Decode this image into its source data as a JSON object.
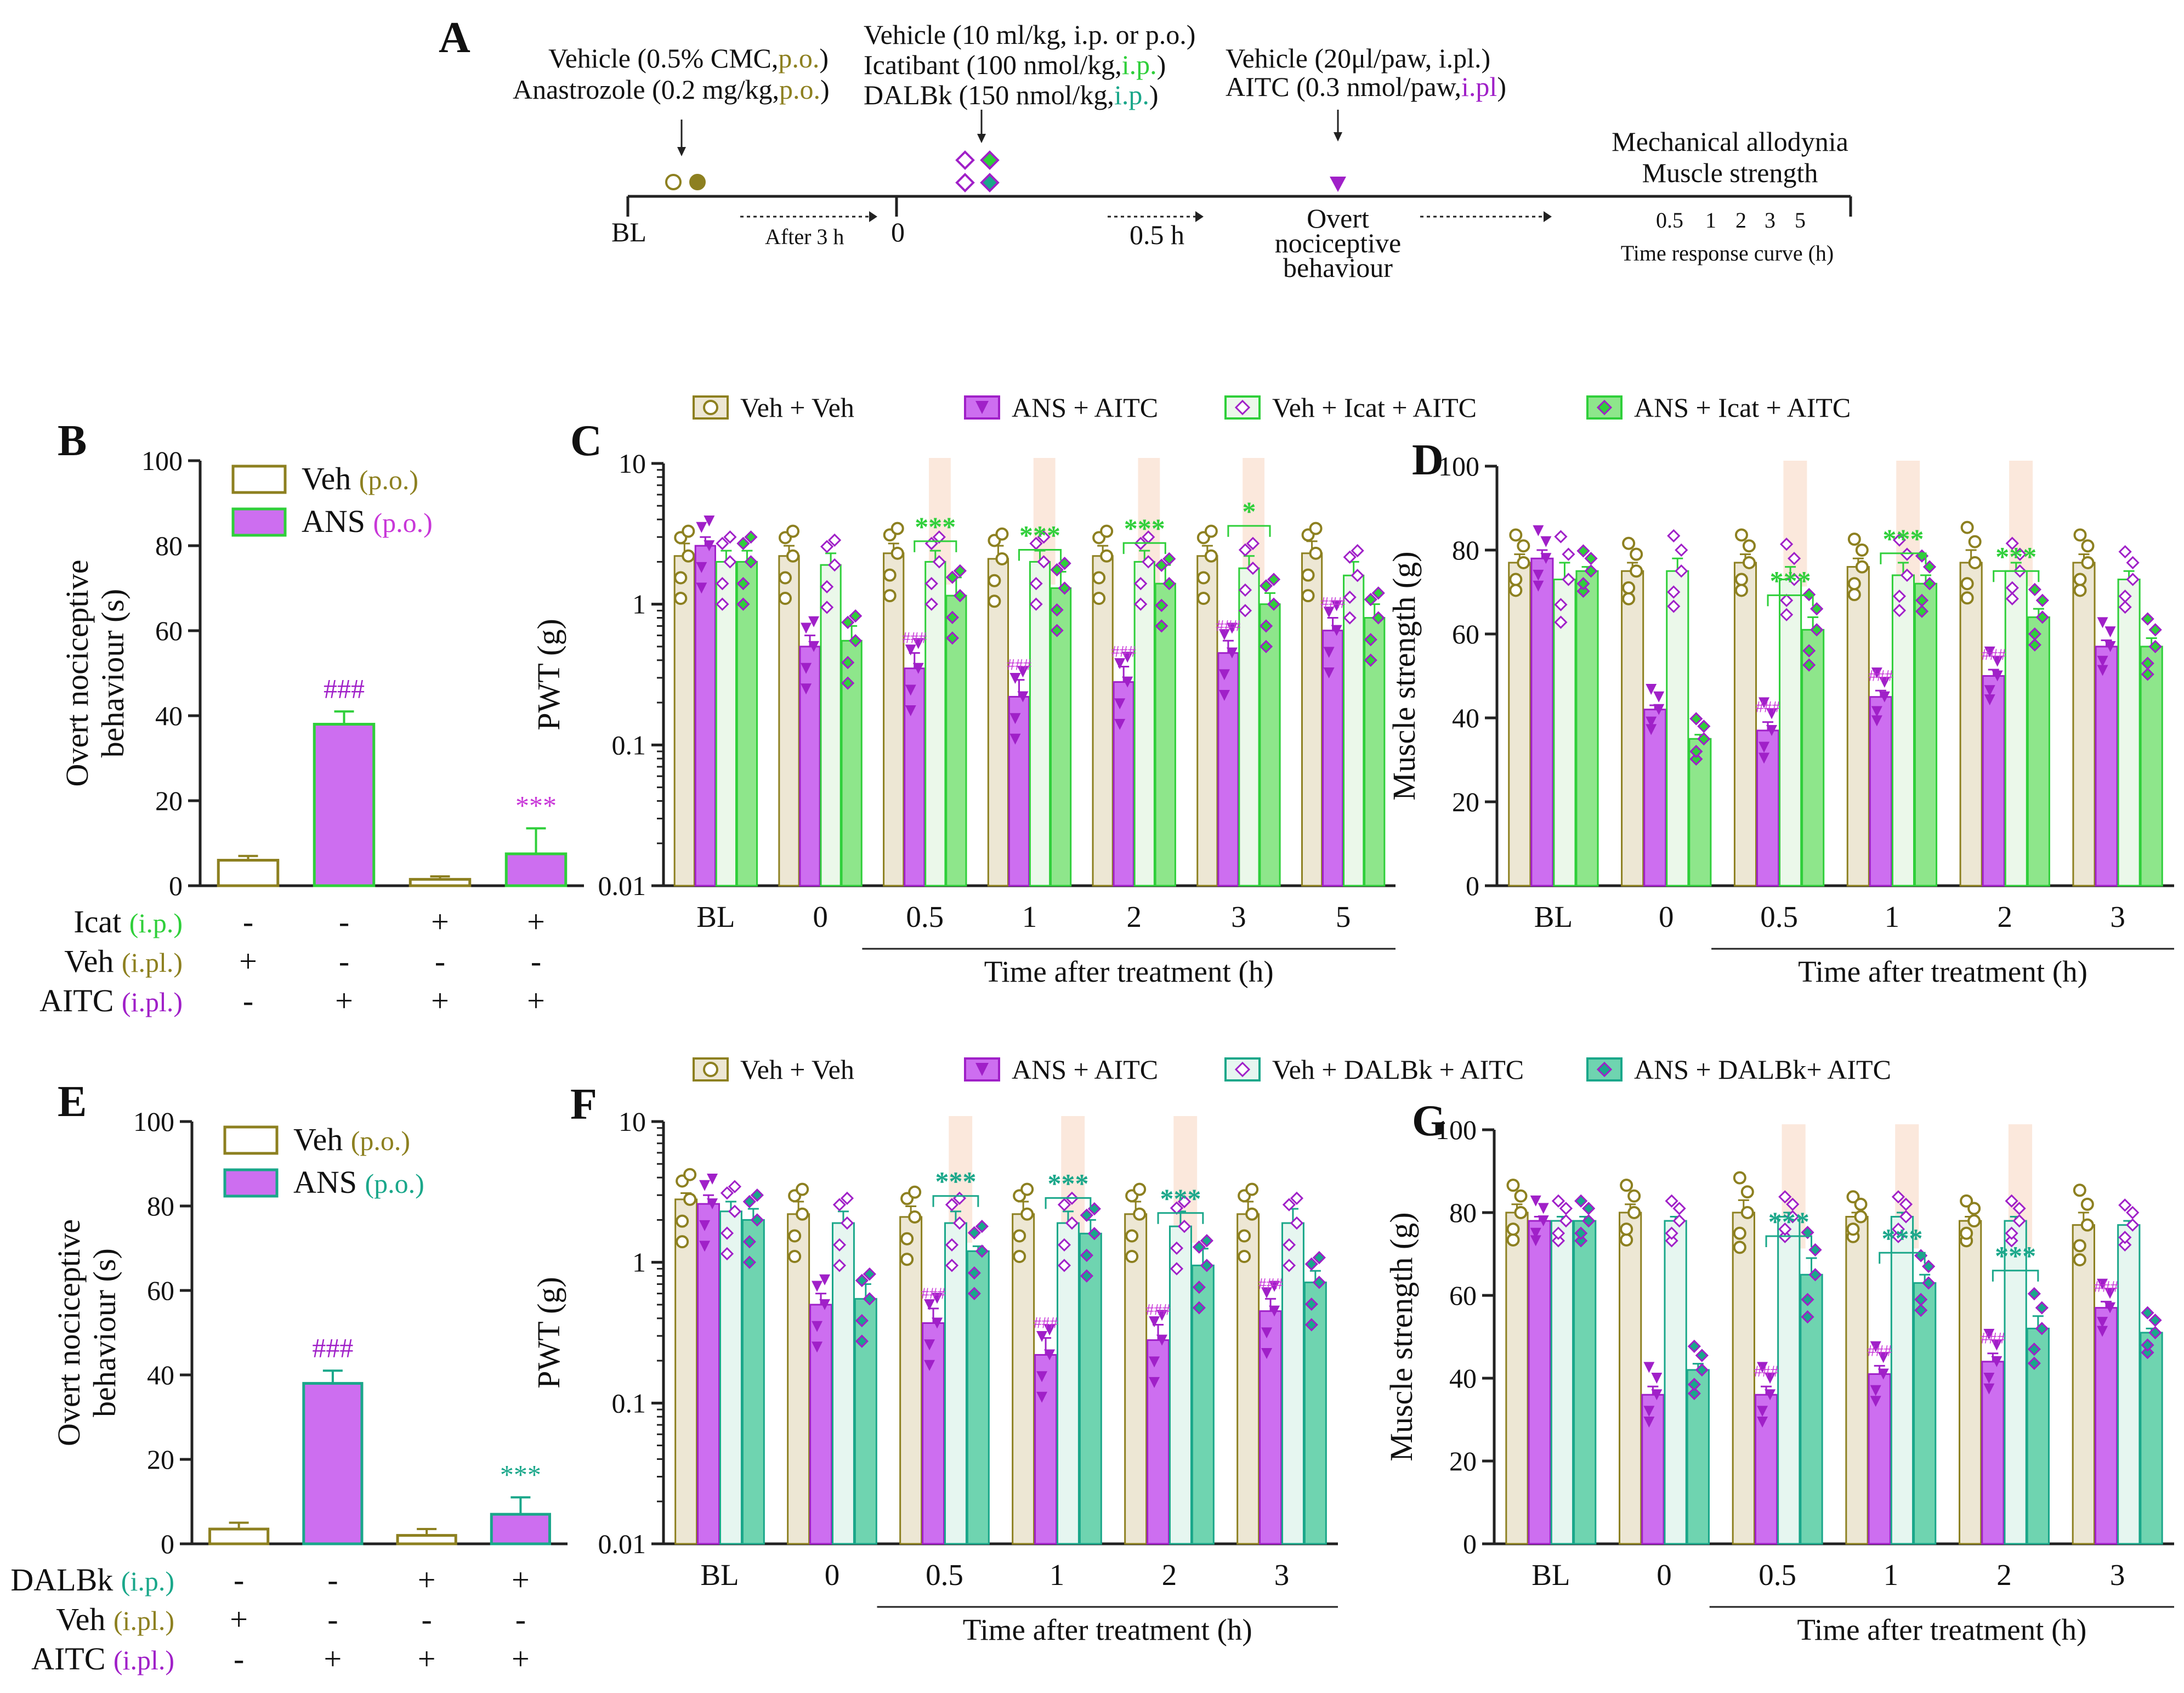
{
  "colors": {
    "olive": "#8d8020",
    "olive_fill": "#ede7d4",
    "purple": "#a020c8",
    "purple_fill": "#cd6ef0",
    "green": "#2fcf3a",
    "green_fill": "#8ee68b",
    "green_light_fill": "#ebf8ea",
    "teal": "#1aa78a",
    "teal_fill": "#6fd4b0",
    "teal_light_fill": "#e6f6f0",
    "magenta_text": "#c837d8",
    "highlight": "#fbe8dc"
  },
  "panel_a": {
    "label": "A",
    "bl": "BL",
    "after3h": "After 3 h",
    "zero": "0",
    "half_h": "0.5 h",
    "g1": [
      {
        "t": "Vehicle (0.5% CMC,",
        "c": ""
      },
      {
        "t": "p.o.",
        "c": "olive"
      },
      {
        "t": ")",
        "c": ""
      }
    ],
    "g2": [
      {
        "t": "Anastrozole (0.2 mg/kg,",
        "c": ""
      },
      {
        "t": "p.o.",
        "c": "olive"
      },
      {
        "t": ")",
        "c": ""
      }
    ],
    "g3": [
      {
        "t": "Vehicle (10 ml/kg, i.p. or p.o.)",
        "c": ""
      }
    ],
    "g4": [
      {
        "t": "Icatibant (100 nmol/kg,",
        "c": ""
      },
      {
        "t": "i.p.",
        "c": "green"
      },
      {
        "t": ")",
        "c": ""
      }
    ],
    "g5": [
      {
        "t": "DALBk (150 nmol/kg,",
        "c": ""
      },
      {
        "t": "i.p.",
        "c": "teal"
      },
      {
        "t": ")",
        "c": ""
      }
    ],
    "g6": [
      {
        "t": "Vehicle (20",
        "c": ""
      },
      {
        "t": "μl/paw, i.pl.)",
        "c": ""
      }
    ],
    "g7": [
      {
        "t": "AITC (0.3 nmol/paw,",
        "c": ""
      },
      {
        "t": "i.pl",
        "c": "purple"
      },
      {
        "t": ")",
        "c": ""
      }
    ],
    "overt": [
      "Overt",
      "nociceptive",
      "behaviour"
    ],
    "mech": [
      "Mechanical allodynia",
      "Muscle strength"
    ],
    "time_points": [
      "0.5",
      "1",
      "2",
      "3",
      "5"
    ],
    "time_curve": "Time response curve (h)"
  },
  "legend_c": [
    "Veh + Veh",
    "ANS + AITC",
    "Veh +  Icat + AITC",
    "ANS + Icat + AITC"
  ],
  "legend_f": [
    "Veh + Veh",
    "ANS + AITC",
    "Veh +  DALBk + AITC",
    "ANS + DALBk+ AITC"
  ],
  "chart_data": [
    {
      "panel": "B",
      "type": "bar",
      "ylabel": "Overt nociceptive behaviour (s)",
      "ylim": [
        0,
        100
      ],
      "yticks": [
        0,
        20,
        40,
        60,
        80,
        100
      ],
      "legend": [
        {
          "name": "Veh",
          "route": "p.o.",
          "route_color": "olive"
        },
        {
          "name": "ANS",
          "route": "p.o.",
          "route_color": "magenta"
        }
      ],
      "values": [
        6,
        38,
        1.5,
        7.5
      ],
      "errors": [
        1,
        3,
        0.7,
        6
      ],
      "groups": [
        "Veh",
        "ANS",
        "Veh",
        "ANS"
      ],
      "annotations": [
        {
          "bar": 1,
          "text": "###",
          "color": "purple"
        },
        {
          "bar": 3,
          "text": "***",
          "color": "magenta"
        }
      ],
      "rows": [
        {
          "name": "Icat",
          "route": "(i.p.)",
          "route_color": "green",
          "signs": [
            "-",
            "-",
            "+",
            "+"
          ]
        },
        {
          "name": "Veh",
          "route": "(i.pl.)",
          "route_color": "olive",
          "signs": [
            "+",
            "-",
            "-",
            "-"
          ]
        },
        {
          "name": "AITC",
          "route": "(i.pl.)",
          "route_color": "purple",
          "signs": [
            "-",
            "+",
            "+",
            "+"
          ]
        }
      ]
    },
    {
      "panel": "C",
      "type": "bar",
      "yscale": "log",
      "ylabel": "PWT (g)",
      "ylim": [
        0.01,
        10
      ],
      "yticks": [
        "0.01",
        "0.1",
        "1",
        "10"
      ],
      "categories": [
        "BL",
        "0",
        "0.5",
        "1",
        "2",
        "3",
        "5"
      ],
      "xlabel": "Time after treatment (h)",
      "series": [
        {
          "name": "Veh + Veh",
          "values": [
            2.2,
            2.2,
            2.3,
            2.1,
            2.2,
            2.2,
            2.3
          ],
          "errors": [
            0.5,
            0.4,
            0.4,
            0.5,
            0.4,
            0.4,
            0.5
          ]
        },
        {
          "name": "ANS + AITC",
          "values": [
            2.6,
            0.5,
            0.35,
            0.22,
            0.28,
            0.45,
            0.65
          ],
          "errors": [
            0.4,
            0.1,
            0.1,
            0.07,
            0.08,
            0.1,
            0.15
          ]
        },
        {
          "name": "Veh + Icat + AITC",
          "values": [
            2.0,
            1.9,
            2.0,
            2.0,
            2.0,
            1.8,
            1.6
          ],
          "errors": [
            0.4,
            0.4,
            0.4,
            0.4,
            0.4,
            0.4,
            0.4
          ]
        },
        {
          "name": "ANS + Icat + AITC",
          "values": [
            2.0,
            0.55,
            1.15,
            1.3,
            1.4,
            1.0,
            0.8
          ],
          "errors": [
            0.4,
            0.15,
            0.4,
            0.4,
            0.5,
            0.2,
            0.2
          ]
        }
      ],
      "hash_marks": [
        2,
        3,
        4,
        5,
        6
      ],
      "star_marks": [
        {
          "cat": 2,
          "text": "***"
        },
        {
          "cat": 3,
          "text": "***"
        },
        {
          "cat": 4,
          "text": "***"
        },
        {
          "cat": 5,
          "text": "*"
        }
      ],
      "highlight": [
        2,
        3,
        4,
        5
      ]
    },
    {
      "panel": "D",
      "type": "bar",
      "ylabel": "Muscle strength (g)",
      "ylim": [
        0,
        100
      ],
      "yticks": [
        0,
        20,
        40,
        60,
        80,
        100
      ],
      "categories": [
        "BL",
        "0",
        "0.5",
        "1",
        "2",
        "3"
      ],
      "xlabel": "Time after treatment (h)",
      "series": [
        {
          "name": "Veh + Veh",
          "values": [
            77,
            75,
            77,
            76,
            77,
            77
          ],
          "errors": [
            2,
            2,
            2,
            2,
            3,
            2
          ]
        },
        {
          "name": "ANS + AITC",
          "values": [
            78,
            42,
            37,
            45,
            50,
            57
          ],
          "errors": [
            2,
            1,
            2,
            1.5,
            1.5,
            1.5
          ]
        },
        {
          "name": "Veh + Icat + AITC",
          "values": [
            73,
            75,
            73,
            74,
            75,
            73
          ],
          "errors": [
            4,
            3,
            3,
            3,
            2,
            2
          ]
        },
        {
          "name": "ANS + Icat + AITC",
          "values": [
            75,
            35,
            61,
            72,
            64,
            57
          ],
          "errors": [
            1,
            1,
            3,
            2,
            2,
            2
          ]
        }
      ],
      "hash_marks": [
        2,
        3,
        4
      ],
      "star_marks": [
        {
          "cat": 2,
          "text": "***"
        },
        {
          "cat": 3,
          "text": "***"
        },
        {
          "cat": 4,
          "text": "***"
        }
      ],
      "highlight": [
        2,
        3,
        4
      ]
    },
    {
      "panel": "E",
      "type": "bar",
      "ylabel": "Overt nociceptive behaviour (s)",
      "ylim": [
        0,
        100
      ],
      "yticks": [
        0,
        20,
        40,
        60,
        80,
        100
      ],
      "legend": [
        {
          "name": "Veh",
          "route": "p.o.",
          "route_color": "olive"
        },
        {
          "name": "ANS",
          "route": "p.o.",
          "route_color": "teal"
        }
      ],
      "values": [
        3.5,
        38,
        2,
        7
      ],
      "errors": [
        1.5,
        3,
        1.5,
        4
      ],
      "groups": [
        "Veh",
        "ANS",
        "Veh",
        "ANS"
      ],
      "annotations": [
        {
          "bar": 1,
          "text": "###",
          "color": "purple"
        },
        {
          "bar": 3,
          "text": "***",
          "color": "teal"
        }
      ],
      "rows": [
        {
          "name": "DALBk",
          "route": "(i.p.)",
          "route_color": "teal",
          "signs": [
            "-",
            "-",
            "+",
            "+"
          ]
        },
        {
          "name": "Veh",
          "route": "(i.pl.)",
          "route_color": "olive",
          "signs": [
            "+",
            "-",
            "-",
            "-"
          ]
        },
        {
          "name": "AITC",
          "route": "(i.pl.)",
          "route_color": "purple",
          "signs": [
            "-",
            "+",
            "+",
            "+"
          ]
        }
      ]
    },
    {
      "panel": "F",
      "type": "bar",
      "yscale": "log",
      "ylabel": "PWT (g)",
      "ylim": [
        0.01,
        10
      ],
      "yticks": [
        "0.01",
        "0.1",
        "1",
        "10"
      ],
      "categories": [
        "BL",
        "0",
        "0.5",
        "1",
        "2",
        "3"
      ],
      "xlabel": "Time after treatment (h)",
      "series": [
        {
          "name": "Veh + Veh",
          "values": [
            2.8,
            2.2,
            2.1,
            2.2,
            2.2,
            2.2
          ],
          "errors": [
            0.3,
            0.5,
            0.4,
            0.5,
            0.5,
            0.5
          ]
        },
        {
          "name": "ANS + AITC",
          "values": [
            2.6,
            0.5,
            0.37,
            0.22,
            0.28,
            0.45
          ],
          "errors": [
            0.4,
            0.1,
            0.1,
            0.07,
            0.08,
            0.1
          ]
        },
        {
          "name": "Veh + DALBk + AITC",
          "values": [
            2.3,
            1.9,
            1.9,
            1.9,
            1.8,
            1.9
          ],
          "errors": [
            0.4,
            0.4,
            0.4,
            0.4,
            0.5,
            0.5
          ]
        },
        {
          "name": "ANS + DALBk+ AITC",
          "values": [
            2.0,
            0.55,
            1.2,
            1.6,
            0.95,
            0.72
          ],
          "errors": [
            0.4,
            0.15,
            0.1,
            0.4,
            0.3,
            0.15
          ]
        }
      ],
      "hash_marks": [
        2,
        3,
        4,
        5
      ],
      "star_marks": [
        {
          "cat": 2,
          "text": "***"
        },
        {
          "cat": 3,
          "text": "***"
        },
        {
          "cat": 4,
          "text": "***"
        }
      ],
      "highlight": [
        2,
        3,
        4
      ]
    },
    {
      "panel": "G",
      "type": "bar",
      "ylabel": "Muscle strength (g)",
      "ylim": [
        0,
        100
      ],
      "yticks": [
        0,
        20,
        40,
        60,
        80,
        100
      ],
      "categories": [
        "BL",
        "0",
        "0.5",
        "1",
        "2",
        "3"
      ],
      "xlabel": "Time after treatment (h)",
      "series": [
        {
          "name": "Veh + Veh",
          "values": [
            80,
            80,
            80,
            79,
            78,
            77
          ],
          "errors": [
            2,
            2,
            3,
            1,
            1,
            3
          ]
        },
        {
          "name": "ANS + AITC",
          "values": [
            78,
            36,
            36,
            41,
            44,
            57
          ],
          "errors": [
            1,
            2,
            2,
            2,
            2,
            1.5
          ]
        },
        {
          "name": "Veh + DALBk + AITC",
          "values": [
            78,
            78,
            79,
            79,
            78,
            77
          ],
          "errors": [
            1,
            1,
            1,
            1,
            1,
            1
          ]
        },
        {
          "name": "ANS + DALBk+ AITC",
          "values": [
            78,
            42,
            65,
            63,
            52,
            51
          ],
          "errors": [
            1,
            1.5,
            4,
            2,
            3,
            1
          ]
        }
      ],
      "hash_marks": [
        2,
        3,
        4,
        5
      ],
      "star_marks": [
        {
          "cat": 2,
          "text": "***"
        },
        {
          "cat": 3,
          "text": "***"
        },
        {
          "cat": 4,
          "text": "***"
        }
      ],
      "highlight": [
        2,
        3,
        4
      ]
    }
  ]
}
